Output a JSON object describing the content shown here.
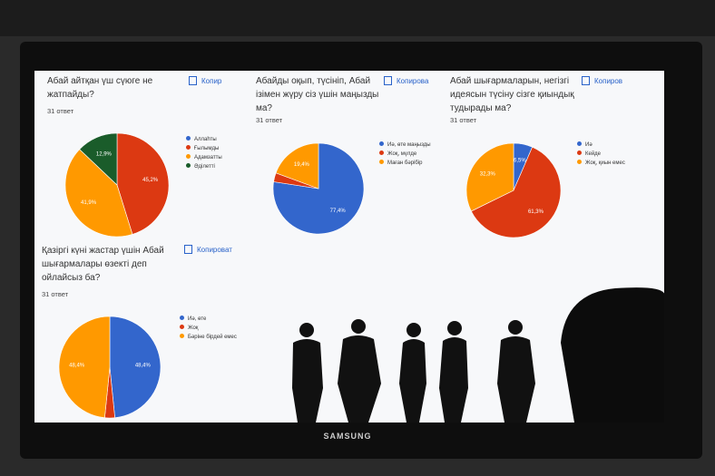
{
  "brand": "SAMSUNG",
  "chart_data": [
    {
      "type": "pie",
      "title": "Абай айтқан үш сүюге не жатпайды?",
      "responses": "31 ответ",
      "copy_label": "Копир",
      "categories": [
        "Аллаһты",
        "Ғылымды",
        "Адамзатты",
        "Әділетті"
      ],
      "values": [
        0,
        45.2,
        41.9,
        12.9
      ],
      "value_labels": [
        null,
        "45,2%",
        "41,9%",
        "12,9%"
      ],
      "colors": [
        "#3366cc",
        "#dc3912",
        "#ff9900",
        "#1a5c2a"
      ]
    },
    {
      "type": "pie",
      "title": "Абайды оқып, түсініп, Абай ізімен жүру сіз үшін маңызды ма?",
      "responses": "31 ответ",
      "copy_label": "Копирова",
      "categories": [
        "Иә, өте маңызды",
        "Жоқ, мүлде",
        "Маған бәрібір"
      ],
      "values": [
        77.4,
        3.2,
        19.4
      ],
      "value_labels": [
        "77,4%",
        null,
        "19,4%"
      ],
      "colors": [
        "#3366cc",
        "#dc3912",
        "#ff9900"
      ]
    },
    {
      "type": "pie",
      "title": "Абай шығармаларын, негізгі идеясын түсіну сізге қиындық тудырады ма?",
      "responses": "31 ответ",
      "copy_label": "Копиров",
      "categories": [
        "Иә",
        "Кейде",
        "Жоқ, қиын емес"
      ],
      "values": [
        6.5,
        61.3,
        32.3
      ],
      "value_labels": [
        "6,5%",
        "61,3%",
        "32,3%"
      ],
      "colors": [
        "#3366cc",
        "#dc3912",
        "#ff9900"
      ]
    },
    {
      "type": "pie",
      "title": "Қазіргі күні жастар үшін Абай шығармалары өзекті деп ойлайсыз ба?",
      "responses": "31 ответ",
      "copy_label": "Копироват",
      "categories": [
        "Иә, өте",
        "Жоқ",
        "Бәріне бірдей емес"
      ],
      "values": [
        48.4,
        3.2,
        48.4
      ],
      "value_labels": [
        "48,4%",
        null,
        "48,4%"
      ],
      "colors": [
        "#3366cc",
        "#dc3912",
        "#ff9900"
      ]
    }
  ]
}
